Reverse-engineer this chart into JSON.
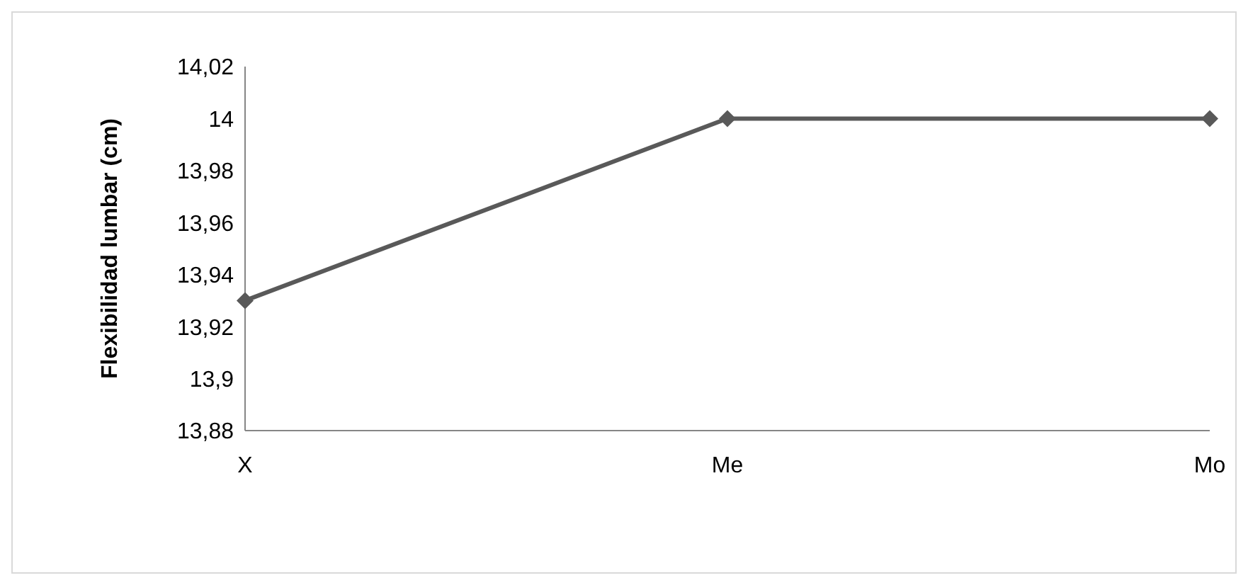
{
  "chart_data": {
    "type": "line",
    "ylabel": "Flexibilidad lumbar (cm)",
    "categories": [
      "X",
      "Me",
      "Mo"
    ],
    "series": [
      {
        "color": "#595959",
        "values": [
          13.93,
          14,
          14
        ]
      }
    ],
    "ylim": [
      13.88,
      14.02
    ],
    "yticks": [
      {
        "value": 13.88,
        "label": "13,88"
      },
      {
        "value": 13.9,
        "label": "13,9"
      },
      {
        "value": 13.92,
        "label": "13,92"
      },
      {
        "value": 13.94,
        "label": "13,94"
      },
      {
        "value": 13.96,
        "label": "13,96"
      },
      {
        "value": 13.98,
        "label": "13,98"
      },
      {
        "value": 14,
        "label": "14"
      },
      {
        "value": 14.02,
        "label": "14,02"
      }
    ],
    "grid": false,
    "legend": false,
    "marker": "diamond",
    "line_style": "solid"
  }
}
